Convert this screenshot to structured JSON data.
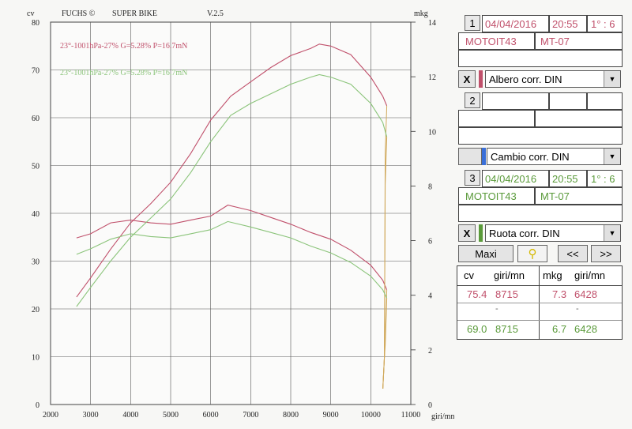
{
  "header": {
    "brand": "FUCHS ©",
    "title": "SUPER BIKE",
    "version": "V.2.5"
  },
  "chart_data": {
    "type": "line",
    "xlabel": "giri/mn",
    "ylabel_left": "cv",
    "ylabel_right": "mkg",
    "xlim": [
      2000,
      11000
    ],
    "ylim_left": [
      0,
      80
    ],
    "ylim_right": [
      0,
      14
    ],
    "x_ticks": [
      2000,
      3000,
      4000,
      5000,
      6000,
      7000,
      8000,
      9000,
      10000,
      11000
    ],
    "y_ticks_left": [
      0,
      10,
      20,
      30,
      40,
      50,
      60,
      70,
      80
    ],
    "y_ticks_right": [
      0,
      2,
      4,
      6,
      8,
      10,
      12,
      14
    ],
    "annotations": [
      {
        "text": "23°-1001hPa-27% G=5.28% P=16.7mN",
        "color": "#c0506b"
      },
      {
        "text": "23°-1001hPa-27% G=5.28% P=16.7mN",
        "color": "#8bc47a"
      }
    ],
    "series": [
      {
        "color": "#c0506b",
        "axis": "left",
        "x": [
          2650,
          3000,
          3500,
          4000,
          4500,
          5000,
          5500,
          6000,
          6500,
          7000,
          7500,
          8000,
          8500,
          8715,
          9000,
          9500,
          10000,
          10300,
          10400
        ],
        "values": [
          22.5,
          26.5,
          32.5,
          38,
          42,
          46.5,
          52.5,
          59.5,
          64.5,
          67.5,
          70.5,
          73,
          74.5,
          75.4,
          75,
          73.2,
          68.5,
          64.5,
          62.5
        ]
      },
      {
        "color": "#c0506b",
        "axis": "right",
        "x": [
          2650,
          3000,
          3500,
          4000,
          4500,
          5000,
          5500,
          6000,
          6428,
          7000,
          7500,
          8000,
          8500,
          9000,
          9500,
          10000,
          10300,
          10400
        ],
        "values": [
          6.1,
          6.25,
          6.65,
          6.75,
          6.65,
          6.6,
          6.75,
          6.9,
          7.3,
          7.1,
          6.85,
          6.6,
          6.3,
          6.05,
          5.65,
          5.1,
          4.55,
          4.2
        ]
      },
      {
        "color": "#8bc47a",
        "axis": "left",
        "x": [
          2650,
          3000,
          3500,
          4000,
          4500,
          5000,
          5500,
          6000,
          6500,
          7000,
          7500,
          8000,
          8500,
          8715,
          9000,
          9500,
          10000,
          10300,
          10400
        ],
        "values": [
          20.5,
          24.5,
          30,
          35,
          39,
          43,
          48.5,
          55,
          60.5,
          63,
          65,
          67,
          68.5,
          69,
          68.5,
          67,
          63,
          59,
          56
        ]
      },
      {
        "color": "#8bc47a",
        "axis": "right",
        "x": [
          2650,
          3000,
          3500,
          4000,
          4500,
          5000,
          5500,
          6000,
          6428,
          7000,
          7500,
          8000,
          8500,
          9000,
          9500,
          10000,
          10300,
          10400
        ],
        "values": [
          5.5,
          5.7,
          6.05,
          6.25,
          6.15,
          6.1,
          6.25,
          6.4,
          6.7,
          6.5,
          6.3,
          6.1,
          5.8,
          5.55,
          5.2,
          4.7,
          4.2,
          3.9
        ]
      }
    ]
  },
  "panel": {
    "slot1": {
      "index": "1",
      "date": "04/04/2016",
      "time": "20:55",
      "gear": "1° : 6",
      "pilot": "MOTOIT43",
      "model": "MT-07"
    },
    "filter1": {
      "close": "X",
      "label": "Albero corr. DIN",
      "swatch": "#c0506b"
    },
    "slot2": {
      "index": "2"
    },
    "filter2": {
      "label": "Cambio corr. DIN",
      "swatch": "#3a6fd8"
    },
    "slot3": {
      "index": "3",
      "date": "04/04/2016",
      "time": "20:55",
      "gear": "1° : 6",
      "pilot": "MOTOIT43",
      "model": "MT-07"
    },
    "filter3": {
      "close": "X",
      "label": "Ruota corr. DIN",
      "swatch": "#5a9a3a"
    },
    "buttons": {
      "maxi": "Maxi",
      "prev": "<<",
      "next": ">>"
    },
    "results": {
      "h_cv": "cv",
      "h_giri1": "giri/mn",
      "h_mkg": "mkg",
      "h_giri2": "giri/mn",
      "r1_cv": "75.4",
      "r1_giri": "8715",
      "r1_mkg": "7.3",
      "r1_giri2": "6428",
      "r2_cv": "-",
      "r2_mkg": "-",
      "r3_cv": "69.0",
      "r3_giri": "8715",
      "r3_mkg": "6.7",
      "r3_giri2": "6428"
    }
  }
}
